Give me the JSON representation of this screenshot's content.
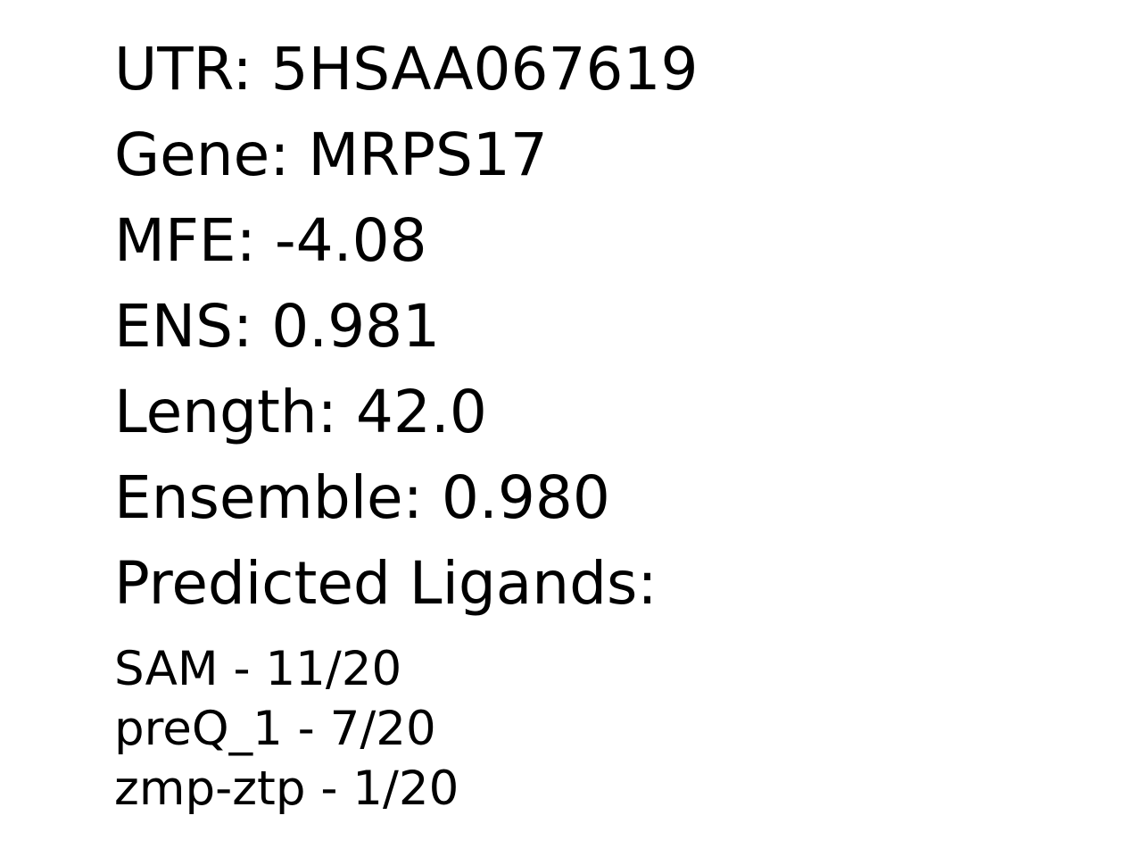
{
  "fields": [
    {
      "label": "UTR",
      "value": "5HSAA067619"
    },
    {
      "label": "Gene",
      "value": "MRPS17"
    },
    {
      "label": "MFE",
      "value": "-4.08"
    },
    {
      "label": "ENS",
      "value": "0.981"
    },
    {
      "label": "Length",
      "value": "42.0"
    },
    {
      "label": "Ensemble",
      "value": "0.980"
    }
  ],
  "ligands_heading": "Predicted Ligands:",
  "ligands": [
    {
      "name": "SAM",
      "score": "11/20"
    },
    {
      "name": "preQ_1",
      "score": "7/20"
    },
    {
      "name": "zmp-ztp",
      "score": "1/20"
    }
  ]
}
